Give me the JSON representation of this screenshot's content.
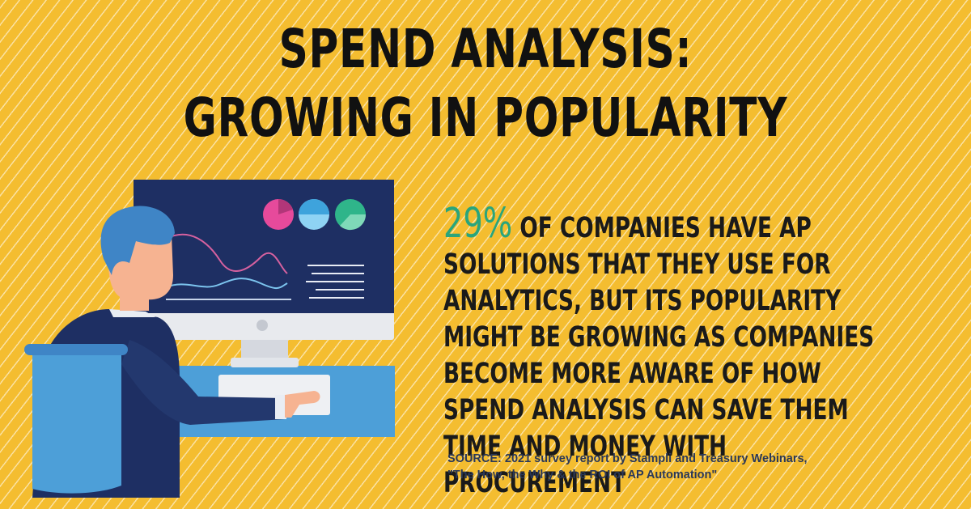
{
  "title": {
    "line1": "SPEND ANALYSIS:",
    "line2": "GROWING IN POPULARITY"
  },
  "stat": {
    "percent": "29%",
    "text": "OF COMPANIES HAVE AP SOLUTIONS THAT THEY USE FOR ANALYTICS, BUT ITS POPULARITY MIGHT BE GROWING AS COMPANIES BECOME MORE AWARE OF HOW SPEND ANALYSIS CAN SAVE THEM TIME AND MONEY WITH PROCUREMENT"
  },
  "source": {
    "line1": "SOURCE: 2021 survey report by Stampli and Treasury Webinars,",
    "line2": "\"The How, the Why & the ROI of AP Automation\""
  },
  "colors": {
    "background": "#f4bd30",
    "accent_green": "#29a57c",
    "navy": "#1e2f63",
    "blue": "#3f85c6"
  },
  "illustration": {
    "subject": "person-at-computer-illustration",
    "icons": [
      "pie-chart-icon",
      "pie-chart-icon",
      "pie-chart-icon",
      "line-chart-icon",
      "text-lines-icon"
    ]
  }
}
